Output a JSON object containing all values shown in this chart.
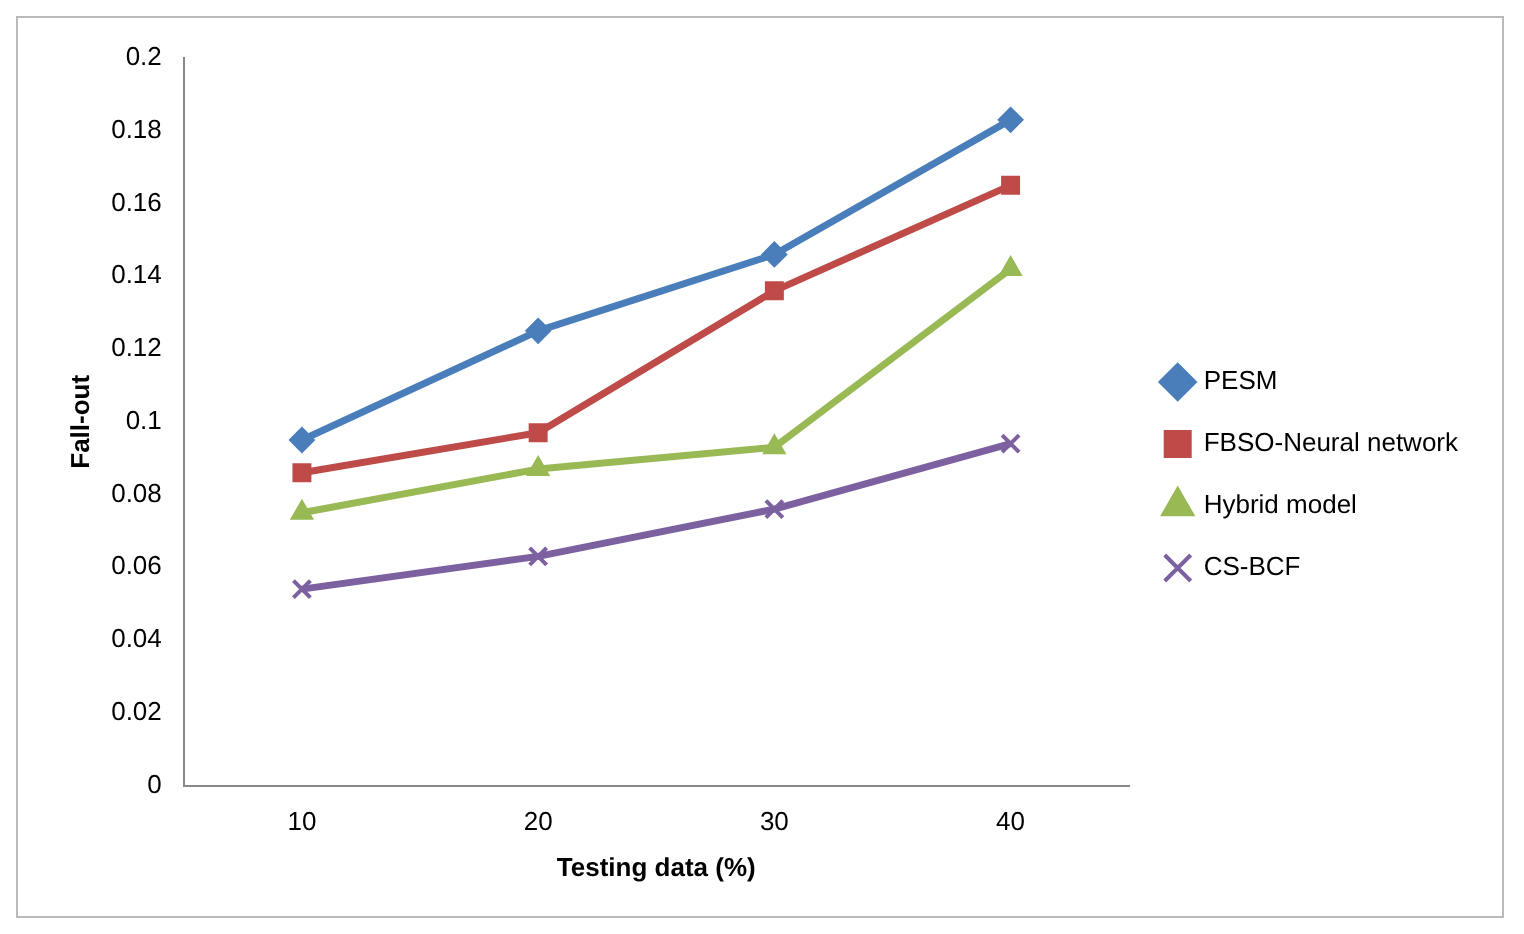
{
  "chart_data": {
    "type": "line",
    "xlabel": "Testing data (%)",
    "ylabel": "Fall-out",
    "categories": [
      "10",
      "20",
      "30",
      "40"
    ],
    "ylim": [
      0,
      0.2
    ],
    "yticks": [
      0,
      0.02,
      0.04,
      0.06,
      0.08,
      0.1,
      0.12,
      0.14,
      0.16,
      0.18,
      0.2
    ],
    "grid": false,
    "legend": "right",
    "series": [
      {
        "name": "PESM",
        "color": "#4a7ebb",
        "marker": "diamond",
        "values": [
          0.095,
          0.125,
          0.146,
          0.183
        ]
      },
      {
        "name": "FBSO-Neural network",
        "color": "#be4b48",
        "marker": "square",
        "values": [
          0.086,
          0.097,
          0.136,
          0.165
        ]
      },
      {
        "name": "Hybrid model",
        "color": "#98b954",
        "marker": "triangle",
        "values": [
          0.075,
          0.087,
          0.093,
          0.142
        ]
      },
      {
        "name": "CS-BCF",
        "color": "#7d60a0",
        "marker": "cross",
        "values": [
          0.054,
          0.063,
          0.076,
          0.094
        ]
      }
    ]
  }
}
